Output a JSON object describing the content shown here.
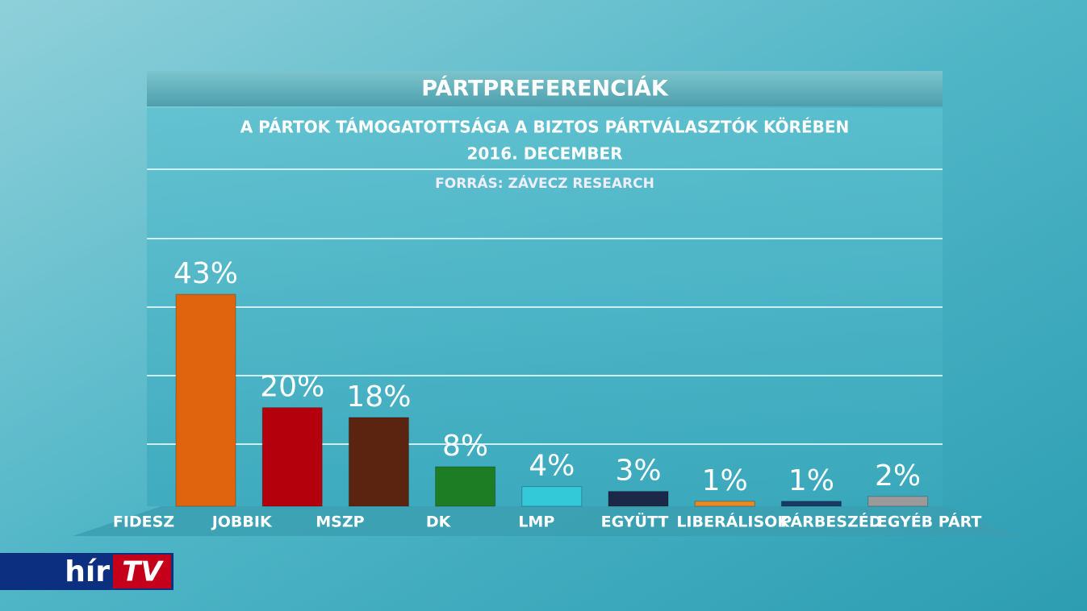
{
  "chart_data": {
    "type": "bar",
    "title": "PÁRTPREFERENCIÁK",
    "subtitle": [
      "A PÁRTOK TÁMOGATOTTSÁGA A BIZTOS PÁRTVÁLASZTÓK KÖRÉBEN",
      "2016. DECEMBER",
      "FORRÁS: ZÁVECZ RESEARCH"
    ],
    "categories": [
      "FIDESZ",
      "JOBBIK",
      "MSZP",
      "DK",
      "LMP",
      "EGYÜTT",
      "LIBERÁLISOK",
      "PÁRBESZÉD",
      "EGYÉB PÁRT"
    ],
    "values": [
      43,
      20,
      18,
      8,
      4,
      3,
      1,
      1,
      2
    ],
    "value_labels": [
      "43%",
      "20%",
      "18%",
      "8%",
      "4%",
      "3%",
      "1%",
      "1%",
      "2%"
    ],
    "colors": [
      "#e0640e",
      "#b3000c",
      "#5a2410",
      "#1d7d24",
      "#34c9d9",
      "#1b2847",
      "#e88a22",
      "#173a66",
      "#9a9a9a"
    ],
    "ylim": [
      0,
      70
    ]
  },
  "logo": {
    "left": "hír",
    "right": "TV"
  }
}
